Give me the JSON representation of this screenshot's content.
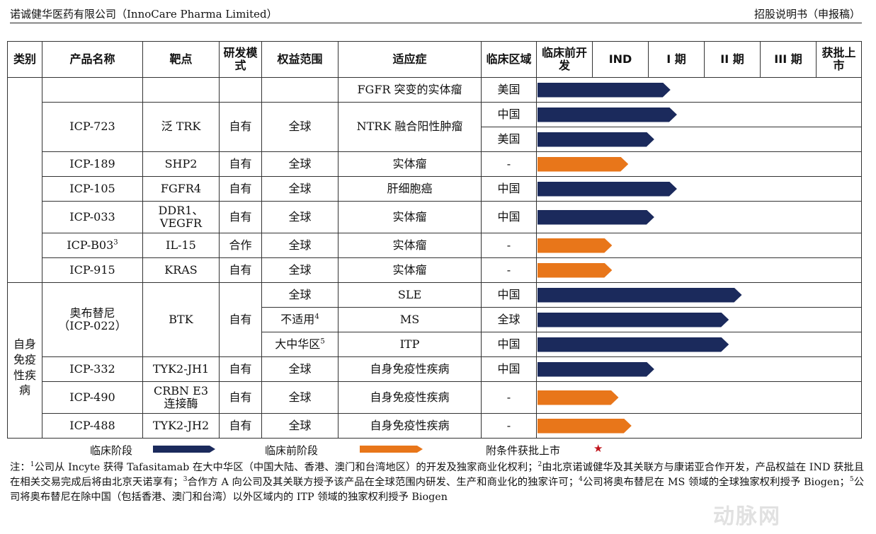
{
  "header": {
    "left": "诺诚健华医药有限公司（InnoCare Pharma Limited）",
    "right": "招股说明书（申报稿）"
  },
  "columns": [
    "类别",
    "产品名称",
    "靶点",
    "研发模式",
    "权益范围",
    "适应症",
    "临床区域",
    "临床前开发",
    "IND",
    "I 期",
    "II 期",
    "III 期",
    "获批上市"
  ],
  "rows": [
    {
      "product": "",
      "target": "",
      "mode": "",
      "rights": "",
      "indication": "FGFR 突变的实体瘤",
      "region": "美国",
      "stage": "clinical",
      "progress": 0.41
    },
    {
      "product": "ICP-723",
      "target": "泛 TRK",
      "mode": "自有",
      "rights": "全球",
      "indication": "NTRK 融合阳性肿瘤",
      "region": "中国",
      "stage": "clinical",
      "progress": 0.43
    },
    {
      "product": "",
      "target": "",
      "mode": "",
      "rights": "",
      "indication": "",
      "region": "美国",
      "stage": "clinical",
      "progress": 0.36
    },
    {
      "product": "ICP-189",
      "target": "SHP2",
      "mode": "自有",
      "rights": "全球",
      "indication": "实体瘤",
      "region": "-",
      "stage": "preclinical",
      "progress": 0.28
    },
    {
      "product": "ICP-105",
      "target": "FGFR4",
      "mode": "自有",
      "rights": "全球",
      "indication": "肝细胞癌",
      "region": "中国",
      "stage": "clinical",
      "progress": 0.43
    },
    {
      "product": "ICP-033",
      "target": "DDR1、VEGFR",
      "mode": "自有",
      "rights": "全球",
      "indication": "实体瘤",
      "region": "中国",
      "stage": "clinical",
      "progress": 0.36
    },
    {
      "product": "ICP-B03",
      "product_sup": "3",
      "target": "IL-15",
      "mode": "合作",
      "rights": "全球",
      "indication": "实体瘤",
      "region": "-",
      "stage": "preclinical",
      "progress": 0.23
    },
    {
      "product": "ICP-915",
      "target": "KRAS",
      "mode": "自有",
      "rights": "全球",
      "indication": "实体瘤",
      "region": "-",
      "stage": "preclinical",
      "progress": 0.23
    },
    {
      "product": "奥布替尼（ICP-022）",
      "target": "BTK",
      "mode": "自有",
      "rights": "全球",
      "indication": "SLE",
      "region": "中国",
      "stage": "clinical",
      "progress": 0.63
    },
    {
      "product": "",
      "target": "",
      "mode": "",
      "rights": "不适用",
      "rights_sup": "4",
      "indication": "MS",
      "region": "全球",
      "stage": "clinical",
      "progress": 0.59
    },
    {
      "product": "",
      "target": "",
      "mode": "",
      "rights": "大中华区",
      "rights_sup": "5",
      "indication": "ITP",
      "region": "中国",
      "stage": "clinical",
      "progress": 0.59
    },
    {
      "product": "ICP-332",
      "target": "TYK2-JH1",
      "mode": "自有",
      "rights": "全球",
      "indication": "自身免疫性疾病",
      "region": "中国",
      "stage": "clinical",
      "progress": 0.36
    },
    {
      "product": "ICP-490",
      "target": "CRBN E3 连接酶",
      "mode": "自有",
      "rights": "全球",
      "indication": "自身免疫性疾病",
      "region": "-",
      "stage": "preclinical",
      "progress": 0.25
    },
    {
      "product": "ICP-488",
      "target": "TYK2-JH2",
      "mode": "自有",
      "rights": "全球",
      "indication": "自身免疫性疾病",
      "region": "-",
      "stage": "preclinical",
      "progress": 0.29
    }
  ],
  "category_autoimmune": "自身免疫性疾病",
  "legend": {
    "clinical": "临床阶段",
    "preclinical": "临床前阶段",
    "conditional": "附条件获批上市"
  },
  "colors": {
    "clinical": "#1b2a5c",
    "preclinical": "#e8761a",
    "star": "#c0141c"
  },
  "notes": {
    "prefix": "注：",
    "n1": "公司从 Incyte 获得 Tafasitamab 在大中华区（中国大陆、香港、澳门和台湾地区）的开发及独家商业化权利；",
    "n2": "由北京诺诚健华及其关联方与康诺亚合作开发，产品权益在 IND 获批且在相关交易完成后将由北京天诺享有；",
    "n3": "合作方 A 向公司及其关联方授予该产品在全球范围内研发、生产和商业化的独家许可；",
    "n4": "公司将奥布替尼在 MS 领域的全球独家权利授予 Biogen；",
    "n5": "公司将奥布替尼在除中国（包括香港、澳门和台湾）以外区域内的 ITP 领域的独家权利授予 Biogen"
  },
  "watermark": "动脉网"
}
